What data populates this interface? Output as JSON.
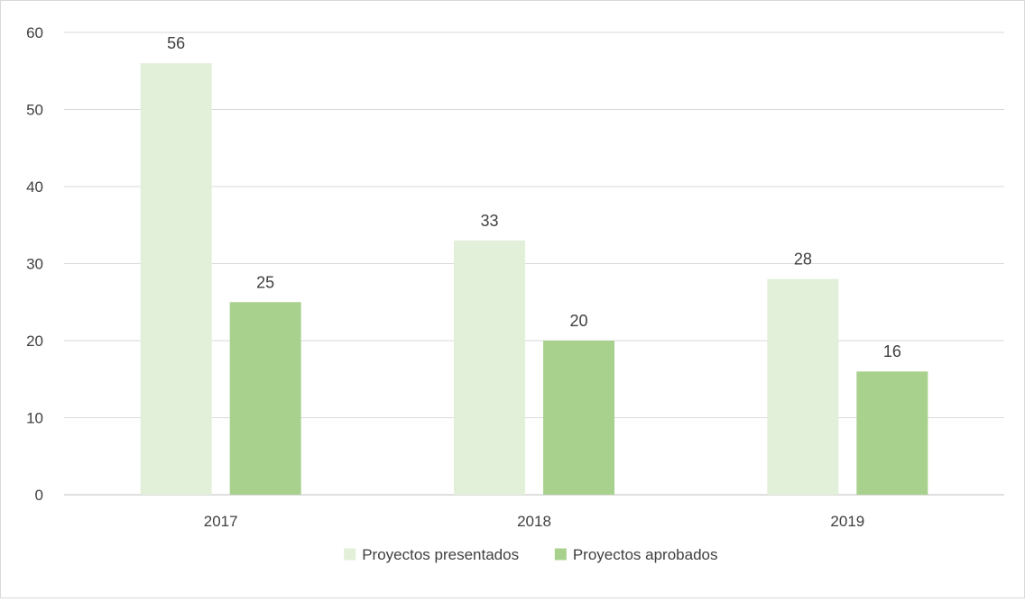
{
  "chart_data": {
    "type": "bar",
    "categories": [
      "2017",
      "2018",
      "2019"
    ],
    "series": [
      {
        "name": "Proyectos presentados",
        "values": [
          56,
          33,
          28
        ],
        "color": "#e2efd9"
      },
      {
        "name": "Proyectos aprobados",
        "values": [
          25,
          20,
          16
        ],
        "color": "#a9d18e"
      }
    ],
    "ylim": [
      0,
      60
    ],
    "yticks": [
      0,
      10,
      20,
      30,
      40,
      50,
      60
    ],
    "grid": true,
    "legend_position": "bottom",
    "data_labels": true
  }
}
